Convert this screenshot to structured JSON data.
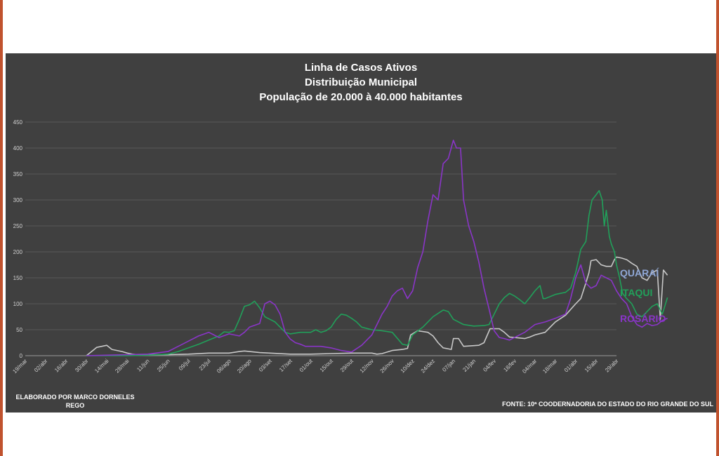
{
  "chart_data": {
    "type": "line",
    "title_lines": [
      "Linha de Casos Ativos",
      "Distribuição Municipal",
      "População  de 20.000 à 40.000 habitantes"
    ],
    "ylim": [
      0,
      450
    ],
    "y_ticks": [
      0,
      50,
      100,
      150,
      200,
      250,
      300,
      350,
      400,
      450
    ],
    "grid": true,
    "x_ticks": [
      "19/mar",
      "02/abr",
      "16/abr",
      "30/abr",
      "14/mai",
      "28/mai",
      "11/jun",
      "25/jun",
      "09/jul",
      "23/jul",
      "06/ago",
      "20/ago",
      "03/set",
      "17/set",
      "01/out",
      "15/out",
      "29/out",
      "12/nov",
      "26/nov",
      "10/dez",
      "24/dez",
      "07/jan",
      "21/jan",
      "04/fev",
      "18/fev",
      "04/mar",
      "18/mar",
      "01/abr",
      "15/abr",
      "29/abr"
    ],
    "legend_placement": "right",
    "series": [
      {
        "name": "QUARAÍ",
        "color": "#c8c8c8",
        "legend_color": "#8fa7d6",
        "points": [
          [
            6,
            0
          ],
          [
            6.5,
            8
          ],
          [
            7,
            16
          ],
          [
            7.5,
            18
          ],
          [
            8,
            20
          ],
          [
            8.5,
            12
          ],
          [
            9,
            10
          ],
          [
            9.5,
            8
          ],
          [
            10,
            5
          ],
          [
            10.5,
            3
          ],
          [
            11,
            2
          ],
          [
            12,
            2
          ],
          [
            14,
            2
          ],
          [
            16,
            3
          ],
          [
            18,
            5
          ],
          [
            20,
            5
          ],
          [
            21,
            8
          ],
          [
            21.5,
            9
          ],
          [
            22,
            8
          ],
          [
            23,
            6
          ],
          [
            24,
            5
          ],
          [
            26,
            3
          ],
          [
            28,
            3
          ],
          [
            30,
            4
          ],
          [
            32,
            5
          ],
          [
            34,
            5
          ],
          [
            34.5,
            3
          ],
          [
            35,
            4
          ],
          [
            36,
            10
          ],
          [
            37,
            12
          ],
          [
            37.5,
            14
          ],
          [
            37.8,
            40
          ],
          [
            38.5,
            48
          ],
          [
            39.5,
            45
          ],
          [
            40,
            38
          ],
          [
            40.5,
            25
          ],
          [
            41,
            15
          ],
          [
            41.8,
            12
          ],
          [
            42,
            33
          ],
          [
            42.5,
            33
          ],
          [
            43,
            18
          ],
          [
            44.5,
            20
          ],
          [
            45,
            25
          ],
          [
            45.6,
            52
          ],
          [
            46.5,
            52
          ],
          [
            47,
            45
          ],
          [
            47.5,
            36
          ],
          [
            48,
            35
          ],
          [
            49,
            33
          ],
          [
            49.5,
            36
          ],
          [
            50,
            40
          ],
          [
            51,
            45
          ],
          [
            51.5,
            55
          ],
          [
            52,
            65
          ],
          [
            53,
            78
          ],
          [
            54,
            100
          ],
          [
            54.5,
            110
          ],
          [
            55,
            140
          ],
          [
            55.3,
            160
          ],
          [
            55.5,
            183
          ],
          [
            56,
            185
          ],
          [
            56.5,
            175
          ],
          [
            57,
            172
          ],
          [
            57.5,
            172
          ],
          [
            57.8,
            185
          ],
          [
            58,
            190
          ],
          [
            58.5,
            188
          ],
          [
            59,
            185
          ],
          [
            59.5,
            178
          ],
          [
            60,
            172
          ],
          [
            60.5,
            150
          ],
          [
            61,
            145
          ],
          [
            61.5,
            160
          ],
          [
            62,
            165
          ],
          [
            62.3,
            70
          ],
          [
            62.6,
            165
          ],
          [
            63,
            155
          ]
        ]
      },
      {
        "name": "ITAQUI",
        "color": "#21a05a",
        "legend_color": "#21a05a",
        "points": [
          [
            6,
            0
          ],
          [
            8,
            0
          ],
          [
            10,
            0
          ],
          [
            12,
            1
          ],
          [
            14,
            3
          ],
          [
            15,
            8
          ],
          [
            16,
            15
          ],
          [
            17,
            22
          ],
          [
            18,
            30
          ],
          [
            19,
            38
          ],
          [
            19.5,
            46
          ],
          [
            20,
            45
          ],
          [
            20.5,
            48
          ],
          [
            21,
            70
          ],
          [
            21.5,
            95
          ],
          [
            22,
            98
          ],
          [
            22.5,
            105
          ],
          [
            23,
            92
          ],
          [
            23.5,
            75
          ],
          [
            24,
            70
          ],
          [
            24.5,
            65
          ],
          [
            25,
            55
          ],
          [
            25.5,
            45
          ],
          [
            26,
            42
          ],
          [
            27,
            45
          ],
          [
            28,
            45
          ],
          [
            28.5,
            50
          ],
          [
            29,
            45
          ],
          [
            29.5,
            48
          ],
          [
            30,
            55
          ],
          [
            30.5,
            70
          ],
          [
            31,
            80
          ],
          [
            31.5,
            78
          ],
          [
            32,
            72
          ],
          [
            32.5,
            65
          ],
          [
            33,
            55
          ],
          [
            34,
            50
          ],
          [
            35,
            48
          ],
          [
            36,
            45
          ],
          [
            37,
            22
          ],
          [
            37.5,
            20
          ],
          [
            38,
            40
          ],
          [
            39,
            55
          ],
          [
            40,
            75
          ],
          [
            41,
            88
          ],
          [
            41.5,
            85
          ],
          [
            42,
            70
          ],
          [
            43,
            60
          ],
          [
            44,
            57
          ],
          [
            45,
            58
          ],
          [
            45.5,
            60
          ],
          [
            46,
            80
          ],
          [
            46.5,
            100
          ],
          [
            47,
            112
          ],
          [
            47.5,
            120
          ],
          [
            48,
            115
          ],
          [
            48.5,
            108
          ],
          [
            49,
            100
          ],
          [
            49.5,
            112
          ],
          [
            50,
            125
          ],
          [
            50.5,
            135
          ],
          [
            50.8,
            110
          ],
          [
            51,
            110
          ],
          [
            52,
            118
          ],
          [
            53,
            122
          ],
          [
            53.5,
            130
          ],
          [
            54,
            160
          ],
          [
            54.5,
            205
          ],
          [
            55,
            220
          ],
          [
            55.3,
            270
          ],
          [
            55.6,
            300
          ],
          [
            56,
            310
          ],
          [
            56.3,
            318
          ],
          [
            56.6,
            300
          ],
          [
            56.8,
            250
          ],
          [
            57,
            280
          ],
          [
            57.3,
            230
          ],
          [
            57.5,
            215
          ],
          [
            57.8,
            200
          ],
          [
            58,
            175
          ],
          [
            58.3,
            150
          ],
          [
            58.6,
            120
          ],
          [
            59,
            110
          ],
          [
            59.5,
            100
          ],
          [
            60,
            80
          ],
          [
            60.5,
            75
          ],
          [
            61,
            85
          ],
          [
            61.5,
            95
          ],
          [
            62,
            100
          ],
          [
            62.5,
            80
          ],
          [
            63,
            112
          ]
        ]
      },
      {
        "name": "ROSÁRIO",
        "color": "#8a35c8",
        "legend_color": "#8a35c8",
        "points": [
          [
            6,
            0
          ],
          [
            8,
            1
          ],
          [
            10,
            2
          ],
          [
            12,
            3
          ],
          [
            14,
            8
          ],
          [
            15,
            18
          ],
          [
            16,
            28
          ],
          [
            17,
            38
          ],
          [
            18,
            45
          ],
          [
            18.5,
            40
          ],
          [
            19,
            35
          ],
          [
            20,
            42
          ],
          [
            21,
            38
          ],
          [
            21.5,
            45
          ],
          [
            22,
            55
          ],
          [
            23,
            62
          ],
          [
            23.5,
            100
          ],
          [
            24,
            105
          ],
          [
            24.5,
            98
          ],
          [
            25,
            80
          ],
          [
            25.5,
            45
          ],
          [
            26,
            32
          ],
          [
            26.5,
            25
          ],
          [
            27,
            22
          ],
          [
            27.5,
            18
          ],
          [
            28,
            18
          ],
          [
            29,
            18
          ],
          [
            30,
            15
          ],
          [
            31,
            10
          ],
          [
            32,
            7
          ],
          [
            33,
            20
          ],
          [
            34,
            40
          ],
          [
            35,
            80
          ],
          [
            35.5,
            95
          ],
          [
            36,
            115
          ],
          [
            36.5,
            125
          ],
          [
            37,
            130
          ],
          [
            37.5,
            110
          ],
          [
            38,
            125
          ],
          [
            38.5,
            170
          ],
          [
            39,
            200
          ],
          [
            39.5,
            260
          ],
          [
            40,
            310
          ],
          [
            40.5,
            300
          ],
          [
            41,
            370
          ],
          [
            41.5,
            380
          ],
          [
            42,
            415
          ],
          [
            42.3,
            400
          ],
          [
            42.7,
            400
          ],
          [
            43,
            300
          ],
          [
            43.5,
            250
          ],
          [
            44,
            220
          ],
          [
            44.5,
            180
          ],
          [
            45,
            130
          ],
          [
            45.5,
            90
          ],
          [
            46,
            48
          ],
          [
            46.5,
            35
          ],
          [
            47,
            33
          ],
          [
            47.5,
            30
          ],
          [
            48,
            35
          ],
          [
            49,
            45
          ],
          [
            50,
            60
          ],
          [
            51,
            65
          ],
          [
            52,
            72
          ],
          [
            53,
            80
          ],
          [
            53.5,
            110
          ],
          [
            54,
            150
          ],
          [
            54.5,
            175
          ],
          [
            55,
            140
          ],
          [
            55.5,
            130
          ],
          [
            56,
            135
          ],
          [
            56.5,
            155
          ],
          [
            57,
            150
          ],
          [
            57.5,
            145
          ],
          [
            58,
            125
          ],
          [
            58.5,
            110
          ],
          [
            59,
            100
          ],
          [
            59.5,
            75
          ],
          [
            60,
            60
          ],
          [
            60.5,
            55
          ],
          [
            61,
            62
          ],
          [
            61.5,
            58
          ],
          [
            62,
            60
          ],
          [
            62.5,
            68
          ],
          [
            63,
            72
          ]
        ]
      }
    ],
    "footnote_left": [
      "ELABORADO POR MARCO DORNELES",
      "REGO"
    ],
    "footnote_right": "FONTE: 10ª COODERNADORIA DO ESTADO DO RIO GRANDE DO SUL"
  }
}
